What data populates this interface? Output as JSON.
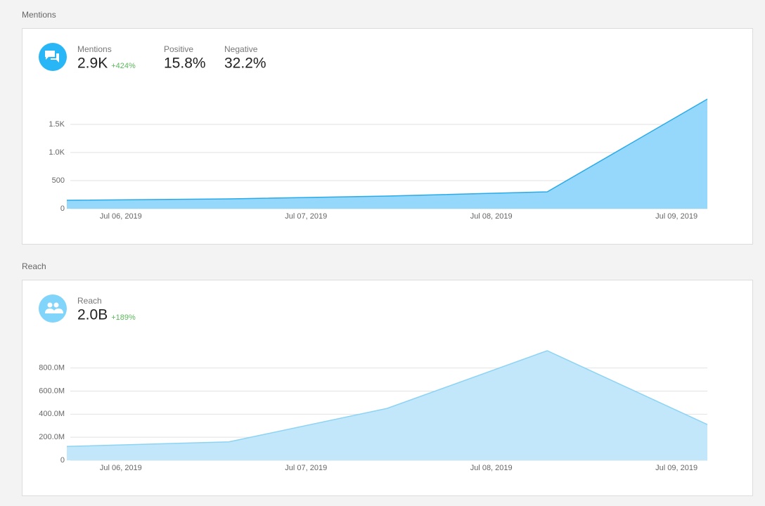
{
  "sections": [
    {
      "heading": "Mentions",
      "stats": [
        {
          "label": "Mentions",
          "value": "2.9K",
          "change": "+424%"
        },
        {
          "label": "Positive",
          "value": "15.8%"
        },
        {
          "label": "Negative",
          "value": "32.2%"
        }
      ]
    },
    {
      "heading": "Reach",
      "stats": [
        {
          "label": "Reach",
          "value": "2.0B",
          "change": "+189%"
        }
      ]
    }
  ],
  "chart_data": [
    {
      "type": "area",
      "color": "#2aaae8",
      "fill": "#95d8fb",
      "x": [
        "2019-07-05T17:00",
        "2019-07-06T14:00",
        "2019-07-07T10:30",
        "2019-07-08T07:15",
        "2019-07-09T04:00"
      ],
      "values": [
        150,
        175,
        225,
        300,
        1950
      ],
      "xlim": [
        "2019-07-05T17:00",
        "2019-07-09T04:00"
      ],
      "xticks": [
        {
          "value": "2019-07-06T00:00",
          "label": "Jul 06, 2019"
        },
        {
          "value": "2019-07-07T00:00",
          "label": "Jul 07, 2019"
        },
        {
          "value": "2019-07-08T00:00",
          "label": "Jul 08, 2019"
        },
        {
          "value": "2019-07-09T00:00",
          "label": "Jul 09, 2019"
        }
      ],
      "ylim": [
        0,
        1950
      ],
      "yticks": [
        0,
        500,
        {
          "value": 1000,
          "label": "1.0K"
        },
        {
          "value": 1500,
          "label": "1.5K"
        }
      ],
      "grid": true
    },
    {
      "type": "area",
      "color": "#8dd3f3",
      "fill": "#c2e7fb",
      "x": [
        "2019-07-05T17:00",
        "2019-07-06T14:00",
        "2019-07-07T10:30",
        "2019-07-08T07:15",
        "2019-07-09T04:00"
      ],
      "values": [
        120000000,
        160000000,
        450000000,
        950000000,
        310000000
      ],
      "xlim": [
        "2019-07-05T17:00",
        "2019-07-09T04:00"
      ],
      "xticks": [
        {
          "value": "2019-07-06T00:00",
          "label": "Jul 06, 2019"
        },
        {
          "value": "2019-07-07T00:00",
          "label": "Jul 07, 2019"
        },
        {
          "value": "2019-07-08T00:00",
          "label": "Jul 08, 2019"
        },
        {
          "value": "2019-07-09T00:00",
          "label": "Jul 09, 2019"
        }
      ],
      "ylim": [
        0,
        950000000
      ],
      "yticks": [
        0,
        {
          "value": 200000000,
          "label": "200.0M"
        },
        {
          "value": 400000000,
          "label": "400.0M"
        },
        {
          "value": 600000000,
          "label": "600.0M"
        },
        {
          "value": 800000000,
          "label": "800.0M"
        }
      ],
      "grid": true
    }
  ]
}
